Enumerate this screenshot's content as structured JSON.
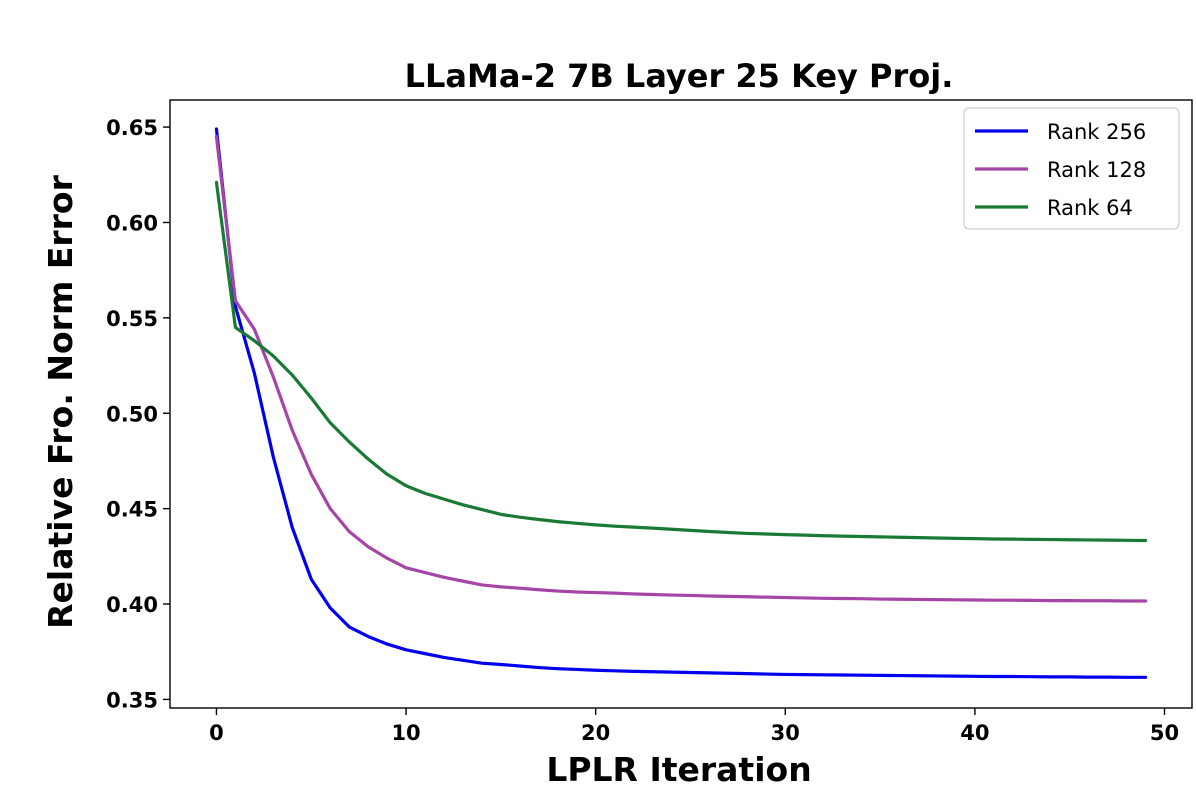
{
  "chart_data": {
    "type": "line",
    "title": "LLaMa-2 7B Layer 25 Key Proj.",
    "xlabel": "LPLR Iteration",
    "ylabel": "Relative Fro. Norm Error",
    "xlim": [
      -2.45,
      51.45
    ],
    "ylim": [
      0.3455,
      0.6642
    ],
    "xticks": [
      0,
      10,
      20,
      30,
      40,
      50
    ],
    "xtick_labels": [
      "0",
      "10",
      "20",
      "30",
      "40",
      "50"
    ],
    "yticks": [
      0.35,
      0.4,
      0.45,
      0.5,
      0.55,
      0.6,
      0.65
    ],
    "ytick_labels": [
      "0.35",
      "0.40",
      "0.45",
      "0.50",
      "0.55",
      "0.60",
      "0.65"
    ],
    "grid": false,
    "legend_position": "top-right",
    "x": [
      0,
      1,
      2,
      3,
      4,
      5,
      6,
      7,
      8,
      9,
      10,
      11,
      12,
      13,
      14,
      15,
      16,
      17,
      18,
      19,
      20,
      21,
      22,
      23,
      24,
      25,
      26,
      27,
      28,
      29,
      30,
      31,
      32,
      33,
      34,
      35,
      36,
      37,
      38,
      39,
      40,
      41,
      42,
      43,
      44,
      45,
      46,
      47,
      48,
      49
    ],
    "series": [
      {
        "name": "Rank 256",
        "color": "#0000ee",
        "values": [
          0.649,
          0.556,
          0.521,
          0.477,
          0.44,
          0.413,
          0.398,
          0.388,
          0.383,
          0.379,
          0.376,
          0.374,
          0.372,
          0.3705,
          0.369,
          0.3683,
          0.3675,
          0.3667,
          0.3661,
          0.3657,
          0.3653,
          0.365,
          0.3647,
          0.3645,
          0.3643,
          0.3641,
          0.3639,
          0.3637,
          0.3635,
          0.3633,
          0.3631,
          0.363,
          0.3629,
          0.3628,
          0.3627,
          0.3626,
          0.3625,
          0.3624,
          0.3623,
          0.3622,
          0.3621,
          0.362,
          0.362,
          0.3619,
          0.3618,
          0.3618,
          0.3617,
          0.3617,
          0.3616,
          0.3616
        ]
      },
      {
        "name": "Rank 128",
        "color": "#a545a5",
        "values": [
          0.645,
          0.559,
          0.544,
          0.519,
          0.491,
          0.468,
          0.45,
          0.438,
          0.43,
          0.424,
          0.419,
          0.4165,
          0.414,
          0.412,
          0.41,
          0.409,
          0.4083,
          0.4075,
          0.4068,
          0.4063,
          0.406,
          0.4057,
          0.4053,
          0.405,
          0.4047,
          0.4045,
          0.4042,
          0.404,
          0.4038,
          0.4036,
          0.4034,
          0.4032,
          0.403,
          0.4029,
          0.4028,
          0.4026,
          0.4025,
          0.4024,
          0.4023,
          0.4022,
          0.4021,
          0.402,
          0.402,
          0.4019,
          0.4018,
          0.4018,
          0.4017,
          0.4017,
          0.4016,
          0.4016
        ]
      },
      {
        "name": "Rank 64",
        "color": "#1a7a35",
        "values": [
          0.621,
          0.545,
          0.538,
          0.53,
          0.52,
          0.508,
          0.495,
          0.485,
          0.476,
          0.468,
          0.462,
          0.458,
          0.455,
          0.452,
          0.4495,
          0.447,
          0.4455,
          0.4443,
          0.4432,
          0.4423,
          0.4415,
          0.4408,
          0.4403,
          0.4398,
          0.4392,
          0.4386,
          0.438,
          0.4375,
          0.437,
          0.4367,
          0.4364,
          0.4361,
          0.4358,
          0.4356,
          0.4354,
          0.4352,
          0.435,
          0.4348,
          0.4346,
          0.4344,
          0.4343,
          0.4341,
          0.434,
          0.4339,
          0.4338,
          0.4337,
          0.4336,
          0.4335,
          0.4334,
          0.4333
        ]
      }
    ]
  }
}
